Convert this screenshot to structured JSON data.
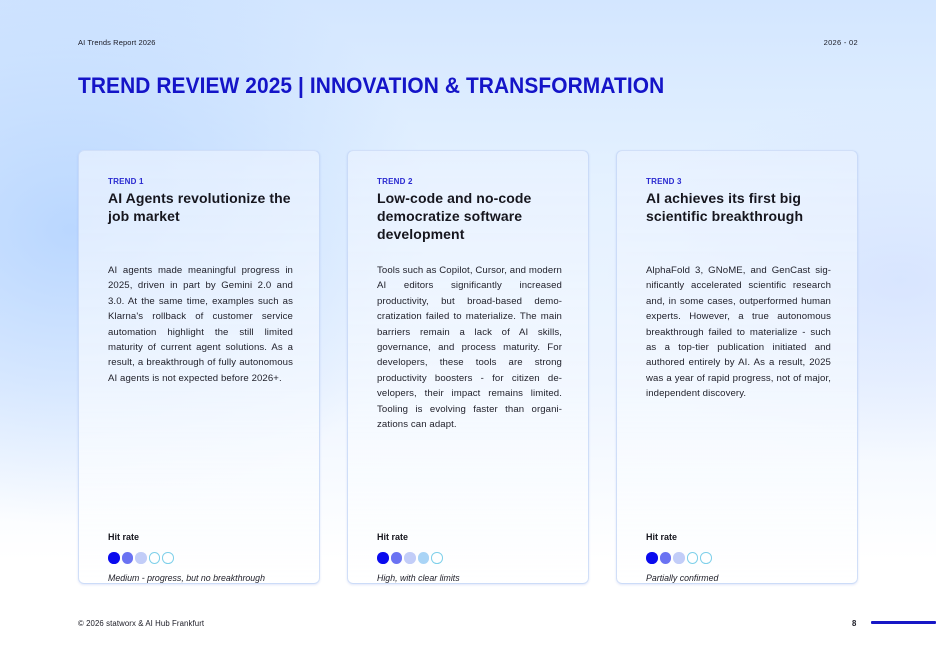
{
  "header": {
    "report_label": "AI Trends Report 2026",
    "date": "2026 - 02",
    "title": "TREND REVIEW 2025 | INNOVATION & TRANSFORMATION"
  },
  "colors": {
    "accent": "#1414c8",
    "dot_full": "#0a0aee",
    "dot_mid": "#6a72f2",
    "dot_light": "#c2cdf8",
    "dot_sky": "#a9d4f6",
    "dot_empty_border": "#7fd0ea"
  },
  "cards": [
    {
      "label": "TREND 1",
      "title": "AI Agents revolutionize the job market",
      "body": "AI agents made meaningful progress in 2025, driven in part by Gemini 2.0 and 3.0. At the same time, examples such as Klarna's rollback of customer service automation highlight the still limited maturity of current agent so­lutions. As a result, a breakthrough of fully autonomous AI agents is not ex­pected before 2026+.",
      "hit_label": "Hit rate",
      "hit_dots": [
        "full",
        "mid",
        "light",
        "empty",
        "empty"
      ],
      "hit_desc": "Medium - progress, but no breakthrough"
    },
    {
      "label": "TREND 2",
      "title": "Low-code and no-code democratize software development",
      "body": "Tools such as Copilot, Cursor, and mo­dern AI editors significantly increased productivity, but broad-based demo­cratization failed to materialize. The main barriers remain a lack of AI skills, governance, and process maturity. For developers, these tools are strong productivity boosters - for citizen de­velopers, their impact remains limited. Tooling is evolving faster than organi­zations can adapt.",
      "hit_label": "Hit rate",
      "hit_dots": [
        "full",
        "mid",
        "light",
        "sky",
        "empty"
      ],
      "hit_desc": "High, with clear limits"
    },
    {
      "label": "TREND 3",
      "title": "AI achieves its first big scientific breakthrough",
      "body": "AlphaFold 3, GNoME, and GenCast sig­nificantly accelerated scientific re­search and, in some cases, outper­formed human experts. However, a true autonomous breakthrough failed to materialize - such as a top-tier pu­blication initiated and authored ent­irely by AI. As a result, 2025 was a year of rapid progress, not of major, inde­pendent discovery.",
      "hit_label": "Hit rate",
      "hit_dots": [
        "full",
        "mid",
        "light",
        "empty",
        "empty"
      ],
      "hit_desc": "Partially confirmed"
    }
  ],
  "footer": {
    "copyright": "© 2026 statworx & AI Hub Frankfurt",
    "page_number": "8"
  }
}
